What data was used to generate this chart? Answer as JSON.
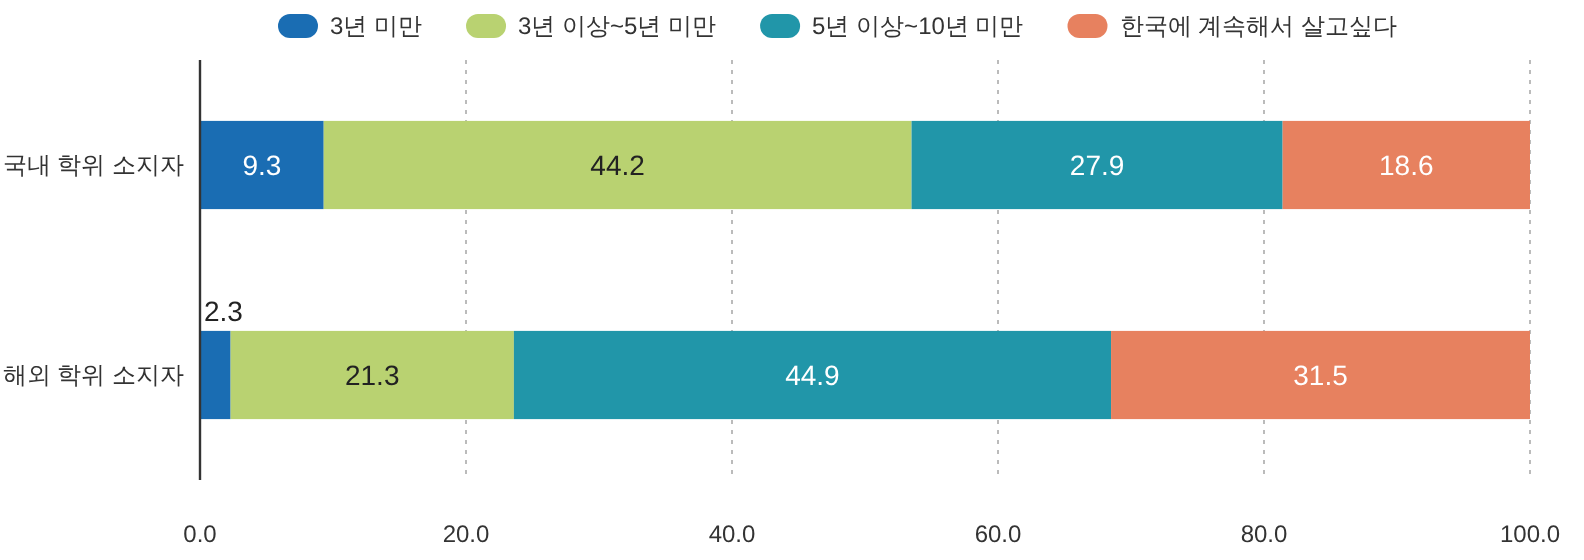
{
  "chart_data": {
    "type": "bar",
    "orientation": "horizontal",
    "stacked": true,
    "categories": [
      "국내 학위 소지자",
      "해외 학위 소지자"
    ],
    "series": [
      {
        "name": "3년 미만",
        "color": "#1a6db3",
        "values": [
          9.3,
          2.3
        ]
      },
      {
        "name": "3년 이상~5년 미만",
        "color": "#b9d271",
        "values": [
          44.2,
          21.3
        ]
      },
      {
        "name": "5년 이상~10년 미만",
        "color": "#2196a9",
        "values": [
          27.9,
          44.9
        ]
      },
      {
        "name": "한국에 계속해서 살고싶다",
        "color": "#e7815f",
        "values": [
          18.6,
          31.5
        ]
      }
    ],
    "xlim": [
      0,
      100
    ],
    "xticks": [
      {
        "value": 0,
        "label": "0.0"
      },
      {
        "value": 20,
        "label": "20.0"
      },
      {
        "value": 40,
        "label": "40.0"
      },
      {
        "value": 60,
        "label": "60.0"
      },
      {
        "value": 80,
        "label": "80.0"
      },
      {
        "value": 100,
        "label": "100.0"
      }
    ],
    "grid": "x",
    "legend": "top",
    "data_labels": true
  }
}
